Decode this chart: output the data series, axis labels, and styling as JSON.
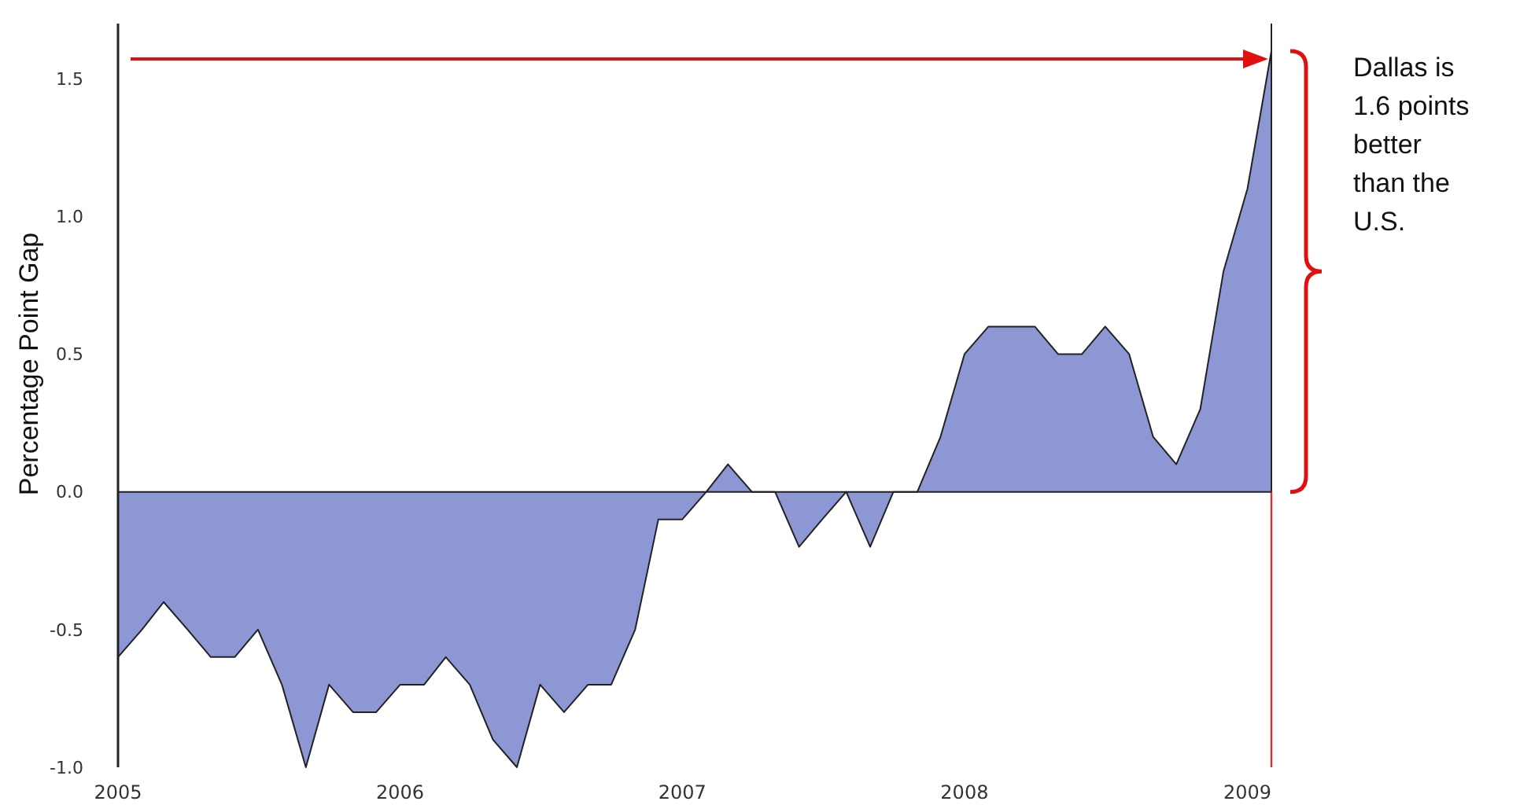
{
  "chart_data": {
    "type": "area",
    "ylabel": "Percentage Point Gap",
    "x": [
      "2005-01",
      "2005-02",
      "2005-03",
      "2005-04",
      "2005-05",
      "2005-06",
      "2005-07",
      "2005-08",
      "2005-09",
      "2005-10",
      "2005-11",
      "2005-12",
      "2006-01",
      "2006-02",
      "2006-03",
      "2006-04",
      "2006-05",
      "2006-06",
      "2006-07",
      "2006-08",
      "2006-09",
      "2006-10",
      "2006-11",
      "2006-12",
      "2007-01",
      "2007-02",
      "2007-03",
      "2007-04",
      "2007-05",
      "2007-06",
      "2007-07",
      "2007-08",
      "2007-09",
      "2007-10",
      "2007-11",
      "2007-12",
      "2008-01",
      "2008-02",
      "2008-03",
      "2008-04",
      "2008-05",
      "2008-06",
      "2008-07",
      "2008-08",
      "2008-09",
      "2008-10",
      "2008-11",
      "2008-12",
      "2009-01",
      "2009-02"
    ],
    "series": [
      {
        "color": "#8d97d4",
        "values": [
          -0.6,
          -0.5,
          -0.4,
          -0.5,
          -0.6,
          -0.6,
          -0.5,
          -0.7,
          -1.0,
          -0.7,
          -0.8,
          -0.8,
          -0.7,
          -0.7,
          -0.6,
          -0.7,
          -0.9,
          -1.0,
          -0.7,
          -0.8,
          -0.7,
          -0.7,
          -0.5,
          -0.1,
          -0.1,
          0.0,
          0.1,
          0.0,
          0.0,
          -0.2,
          -0.1,
          0.0,
          -0.2,
          0.0,
          0.0,
          0.2,
          0.5,
          0.6,
          0.6,
          0.6,
          0.5,
          0.5,
          0.6,
          0.5,
          0.2,
          0.1,
          0.3,
          0.8,
          1.1,
          1.6
        ]
      }
    ],
    "xlim": [
      "2005-01",
      "2009-02"
    ],
    "xticks": [
      {
        "value": "2005",
        "label": "2005"
      },
      {
        "value": "2006",
        "label": "2006"
      },
      {
        "value": "2007",
        "label": "2007"
      },
      {
        "value": "2008",
        "label": "2008"
      },
      {
        "value": "2009",
        "label": "2009"
      }
    ],
    "ylim": [
      -1,
      1.7
    ],
    "yticks": [
      {
        "value": -1,
        "label": "-1.0"
      },
      {
        "value": -0.5,
        "label": "-0.5"
      },
      {
        "value": 0,
        "label": "0.0"
      },
      {
        "value": 0.5,
        "label": "0.5"
      },
      {
        "value": 1,
        "label": "1.0"
      },
      {
        "value": 1.5,
        "label": "1.5"
      }
    ],
    "ref_lines": [
      {
        "axis": "x",
        "value": "2009-02",
        "color": "#e03030"
      },
      {
        "axis": "y",
        "value": 0,
        "color": "#222222"
      }
    ],
    "annotations": [
      "Dallas is 1.6 points better than the U.S."
    ],
    "grid": false
  }
}
